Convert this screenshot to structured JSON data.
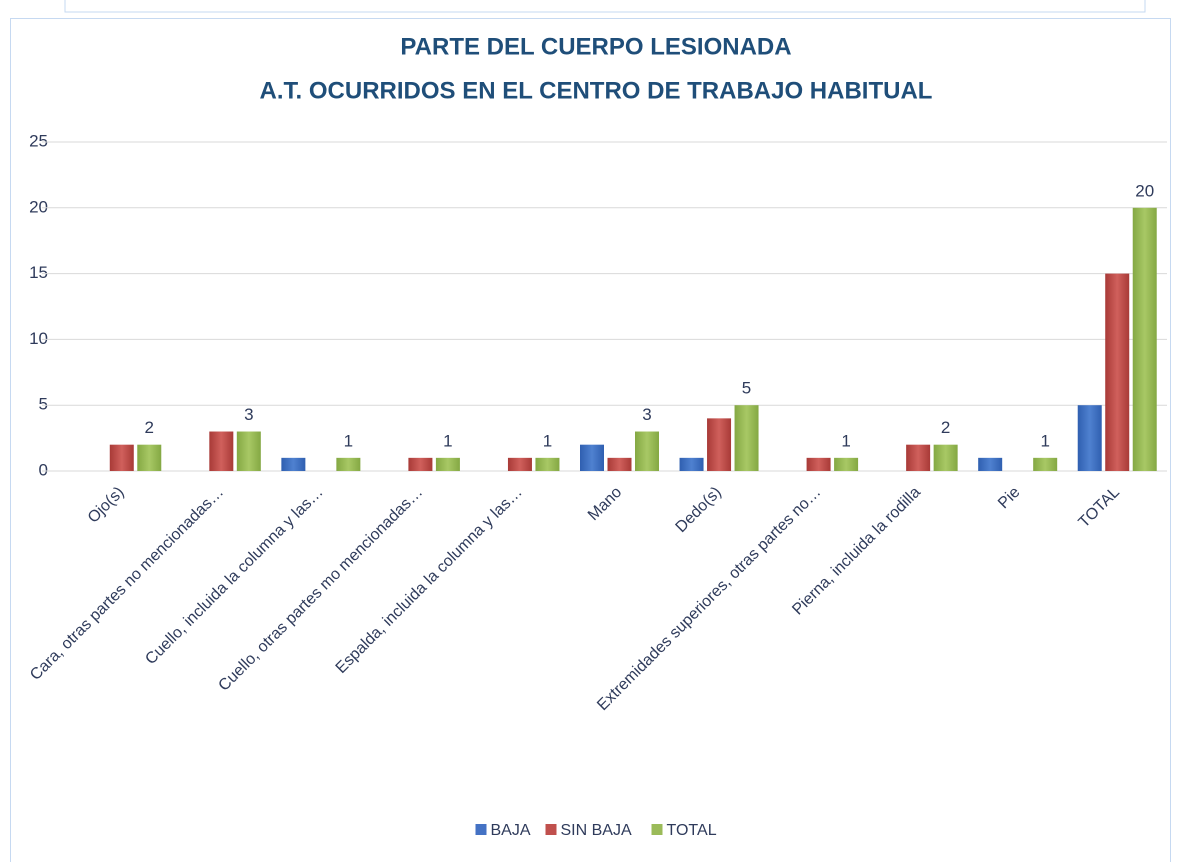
{
  "chart_data": {
    "type": "bar",
    "title": [
      "PARTE DEL CUERPO LESIONADA",
      "A.T. OCURRIDOS EN EL CENTRO DE TRABAJO HABITUAL"
    ],
    "categories": [
      "Ojo(s)",
      "Cara, otras partes no mencionadas…",
      "Cuello, incluida la columna y las…",
      "Cuello, otras partes mo mencionadas…",
      "Espalda, incluida la columna y las…",
      "Mano",
      "Dedo(s)",
      "Extremidades superiores, otras partes no…",
      "Pierna, incluida la rodilla",
      "Pie",
      "TOTAL"
    ],
    "series": [
      {
        "name": "BAJA",
        "color": "#4472c4",
        "values": [
          0,
          0,
          1,
          0,
          0,
          2,
          1,
          0,
          0,
          1,
          5
        ]
      },
      {
        "name": "SIN BAJA",
        "color": "#c0504d",
        "values": [
          2,
          3,
          0,
          1,
          1,
          1,
          4,
          1,
          2,
          0,
          15
        ]
      },
      {
        "name": "TOTAL",
        "color": "#9bbb59",
        "values": [
          2,
          3,
          1,
          1,
          1,
          3,
          5,
          1,
          2,
          1,
          20
        ],
        "data_labels": true
      }
    ],
    "ylim": [
      0,
      25
    ],
    "yticks": [
      0,
      5,
      10,
      15,
      20,
      25
    ],
    "grid": true,
    "legend": "bottom"
  }
}
